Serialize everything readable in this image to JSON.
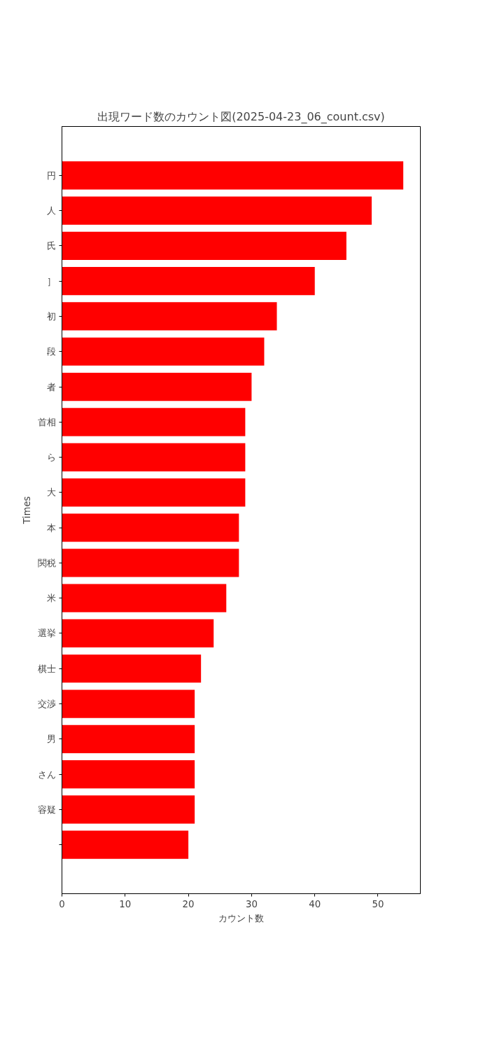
{
  "chart_data": {
    "type": "bar",
    "orientation": "horizontal",
    "title": "出現ワード数のカウント図(2025-04-23_06_count.csv)",
    "xlabel": "カウント数",
    "ylabel": "Times",
    "categories": [
      "円",
      "人",
      "氏",
      "］",
      "初",
      "段",
      "者",
      "首相",
      "ら",
      "大",
      "本",
      "関税",
      "米",
      "選挙",
      "棋士",
      "交渉",
      "男",
      "さん",
      "容疑",
      null
    ],
    "values": [
      54,
      49,
      45,
      40,
      34,
      32,
      30,
      29,
      29,
      29,
      28,
      28,
      26,
      24,
      22,
      21,
      21,
      21,
      21,
      20
    ],
    "color": "#ff0000",
    "xlim": [
      0,
      56.7
    ],
    "xticks": [
      0,
      10,
      20,
      30,
      40,
      50
    ],
    "grid": false
  }
}
